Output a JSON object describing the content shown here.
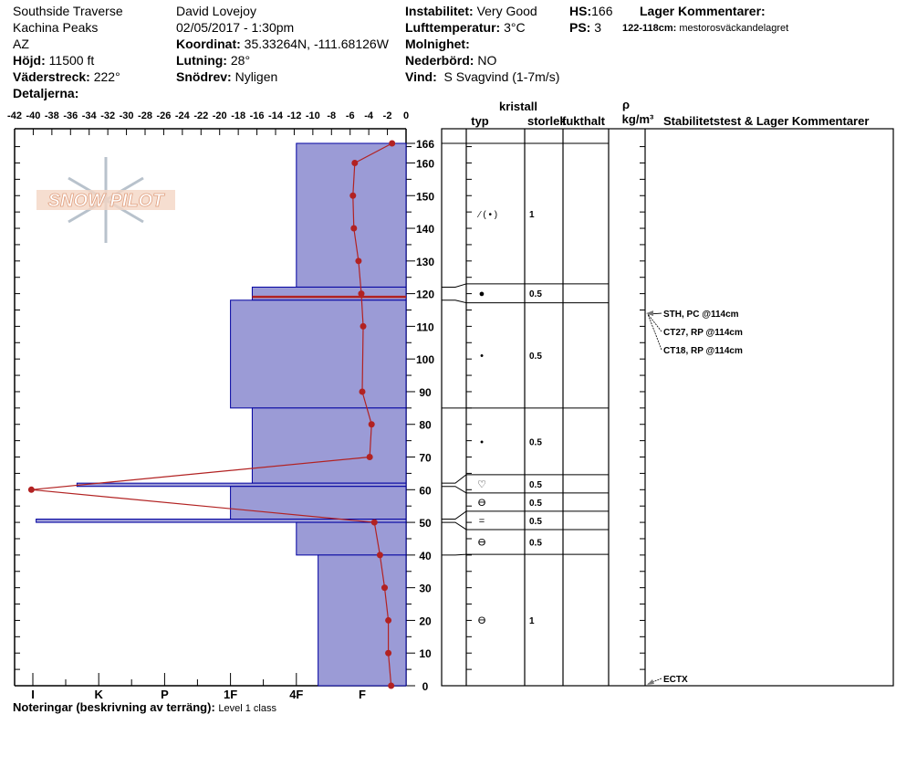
{
  "header": {
    "location": "Southside Traverse",
    "range": "Kachina Peaks",
    "state": "AZ",
    "elevation_label": "Höjd:",
    "elevation": "11500 ft",
    "aspect_label": "Väderstreck:",
    "aspect": "222°",
    "details_label": "Detaljerna:",
    "observer": "David Lovejoy",
    "datetime": "02/05/2017 - 1:30pm",
    "coord_label": "Koordinat:",
    "coord": "35.33264N, -111.68126W",
    "slope_label": "Lutning:",
    "slope": "28°",
    "drift_label": "Snödrev:",
    "drift": "Nyligen",
    "instability_label": "Instabilitet:",
    "instability": "Very Good",
    "airtemp_label": "Lufttemperatur:",
    "airtemp": "3°C",
    "sky_label": "Molnighet:",
    "precip_label": "Nederbörd:",
    "precip": "NO",
    "wind_label": "Vind:",
    "wind": "S Svagvind (1-7m/s)",
    "hs_label": "HS:",
    "hs": "166",
    "ps_label": "PS:",
    "ps": "3",
    "layer_comments_label": "Lager Kommentarer:",
    "layer_comment_range": "122-118cm:",
    "layer_comment": "mestorosväckandelagret"
  },
  "logo_text": "SNOW PILOT",
  "notes_label": "Noteringar (beskrivning av terräng):",
  "notes": "Level 1 class",
  "table_headers": {
    "kristall": "kristall",
    "typ": "typ",
    "storlek": "storlek",
    "fukthalt": "fukthalt",
    "rho": "ρ",
    "density": "kg/m³",
    "comments": "Stabilitetstest & Lager Kommentarer"
  },
  "chart_data": {
    "type": "snow-profile",
    "temp_axis": {
      "ticks": [
        -42,
        -40,
        -38,
        -36,
        -34,
        -32,
        -30,
        -28,
        -26,
        -24,
        -22,
        -20,
        -18,
        -16,
        -14,
        -12,
        -10,
        -8,
        -6,
        -4,
        -2,
        0
      ],
      "range": [
        -42,
        0
      ]
    },
    "height_axis": {
      "ticks": [
        0,
        10,
        20,
        30,
        40,
        50,
        60,
        70,
        80,
        90,
        100,
        110,
        120,
        130,
        140,
        150,
        160,
        166
      ],
      "range": [
        0,
        166
      ],
      "unit": "cm"
    },
    "hardness_axis": {
      "labels": [
        "I",
        "K",
        "P",
        "1F",
        "4F",
        "F"
      ]
    },
    "temperature_profile": [
      {
        "h": 166,
        "t": -1.5
      },
      {
        "h": 160,
        "t": -5.5
      },
      {
        "h": 150,
        "t": -5.7
      },
      {
        "h": 140,
        "t": -5.6
      },
      {
        "h": 130,
        "t": -5.1
      },
      {
        "h": 120,
        "t": -4.8
      },
      {
        "h": 110,
        "t": -4.6
      },
      {
        "h": 90,
        "t": -4.7
      },
      {
        "h": 80,
        "t": -3.7
      },
      {
        "h": 70,
        "t": -3.9
      },
      {
        "h": 60,
        "t": -40.2
      },
      {
        "h": 50,
        "t": -3.4
      },
      {
        "h": 40,
        "t": -2.8
      },
      {
        "h": 30,
        "t": -2.3
      },
      {
        "h": 20,
        "t": -1.9
      },
      {
        "h": 10,
        "t": -1.9
      },
      {
        "h": 0,
        "t": -1.6
      }
    ],
    "layers": [
      {
        "top": 166,
        "bottom": 122,
        "hardness": 4.0,
        "type": "⁄ ( • )",
        "size": "1"
      },
      {
        "top": 122,
        "bottom": 118,
        "hardness": 3.33,
        "type": "●",
        "size": "0.5"
      },
      {
        "top": 118,
        "bottom": 85,
        "hardness": 3.0,
        "type": "•",
        "size": "0.5"
      },
      {
        "top": 85,
        "bottom": 62,
        "hardness": 3.33,
        "type": "•",
        "size": "0.5"
      },
      {
        "top": 62,
        "bottom": 61,
        "hardness": 0.67,
        "type": "♡",
        "size": "0.5"
      },
      {
        "top": 61,
        "bottom": 51,
        "hardness": 3.0,
        "type": "Ө",
        "size": "0.5"
      },
      {
        "top": 51,
        "bottom": 50,
        "hardness": 0.05,
        "type": "=",
        "size": "0.5"
      },
      {
        "top": 50,
        "bottom": 40,
        "hardness": 4.0,
        "type": "Ө",
        "size": "0.5"
      },
      {
        "top": 40,
        "bottom": 0,
        "hardness": 4.33,
        "type": "Ө",
        "size": "1"
      }
    ],
    "critical_layer_cm": 119,
    "stability_tests": [
      {
        "label": "STH, PC @114cm",
        "h": 114
      },
      {
        "label": "CT27, RP @114cm",
        "h": 114
      },
      {
        "label": "CT18, RP @114cm",
        "h": 114
      },
      {
        "label": "ECTX",
        "h": 0
      }
    ],
    "colors": {
      "layer_fill": "#9b9bd6",
      "layer_stroke": "#0000a0",
      "temp": "#b22222"
    }
  }
}
